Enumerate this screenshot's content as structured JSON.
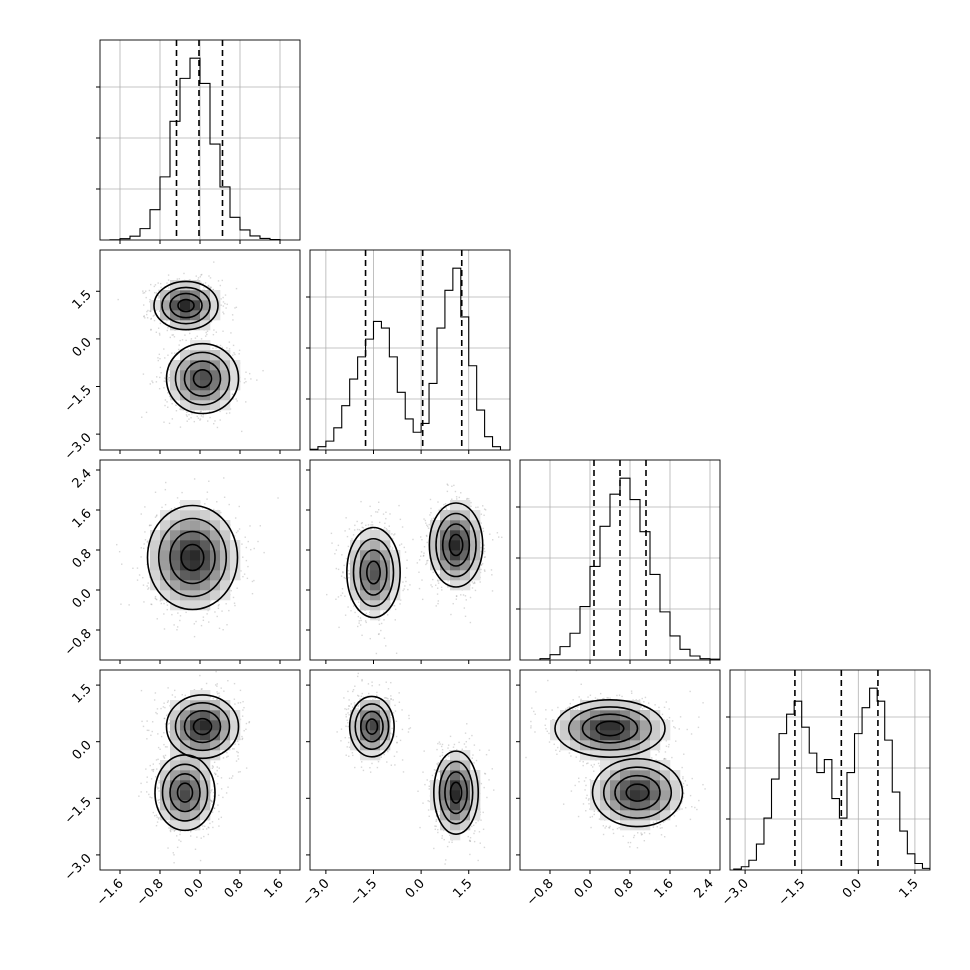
{
  "chart_data": {
    "type": "corner",
    "parameters": 4,
    "grid": true,
    "colors": {
      "line": "#000000",
      "grid": "#b0b0b0",
      "scatter": "#8c8c8c"
    },
    "axes": [
      {
        "lim": [
          -2.0,
          2.0
        ],
        "ticks": [
          -1.6,
          -0.8,
          0.0,
          0.8,
          1.6
        ],
        "tick_labels": [
          "−1.6",
          "−0.8",
          "0.0",
          "0.8",
          "1.6"
        ]
      },
      {
        "lim": [
          -3.5,
          2.8
        ],
        "ticks": [
          -3.0,
          -1.5,
          0.0,
          1.5
        ],
        "tick_labels": [
          "−3.0",
          "−1.5",
          "0.0",
          "1.5"
        ]
      },
      {
        "lim": [
          -1.4,
          2.6
        ],
        "ticks": [
          -0.8,
          0.0,
          0.8,
          1.6,
          2.4
        ],
        "tick_labels": [
          "−0.8",
          "0.0",
          "0.8",
          "1.6",
          "2.4"
        ]
      },
      {
        "lim": [
          -3.4,
          1.9
        ],
        "ticks": [
          -3.0,
          -1.5,
          0.0,
          1.5
        ],
        "tick_labels": [
          "−3.0",
          "−1.5",
          "0.0",
          "1.5"
        ]
      }
    ],
    "diagonal": [
      {
        "param": 0,
        "bin_edges": [
          -1.8,
          -1.6,
          -1.4,
          -1.2,
          -1.0,
          -0.8,
          -0.6,
          -0.4,
          -0.2,
          0.0,
          0.2,
          0.4,
          0.6,
          0.8,
          1.0,
          1.2,
          1.4,
          1.6
        ],
        "counts": [
          0.1,
          0.5,
          1.5,
          4.5,
          12,
          25,
          47,
          64,
          72,
          62,
          38,
          21,
          9,
          4,
          1.6,
          0.6,
          0.2
        ],
        "quantiles": [
          -0.47,
          -0.02,
          0.45
        ]
      },
      {
        "param": 1,
        "bin_edges": [
          -3.5,
          -3.25,
          -3.0,
          -2.75,
          -2.5,
          -2.25,
          -2.0,
          -1.75,
          -1.5,
          -1.25,
          -1.0,
          -0.75,
          -0.5,
          -0.25,
          0.0,
          0.25,
          0.5,
          0.75,
          1.0,
          1.25,
          1.5,
          1.75,
          2.0,
          2.25,
          2.5
        ],
        "counts": [
          0.3,
          1.5,
          4,
          10,
          20,
          32,
          42,
          50,
          58,
          55,
          42,
          26,
          14,
          8,
          12,
          30,
          55,
          72,
          82,
          60,
          38,
          18,
          6,
          1.5
        ],
        "quantiles": [
          -1.75,
          0.05,
          1.28
        ]
      },
      {
        "param": 2,
        "bin_edges": [
          -1.0,
          -0.8,
          -0.6,
          -0.4,
          -0.2,
          0.0,
          0.2,
          0.4,
          0.6,
          0.8,
          1.0,
          1.2,
          1.4,
          1.6,
          1.8,
          2.0,
          2.2,
          2.4,
          2.6
        ],
        "counts": [
          0.5,
          2,
          5,
          10,
          20,
          35,
          50,
          62,
          68,
          60,
          48,
          32,
          18,
          9,
          4,
          1.5,
          0.5,
          0.3
        ],
        "quantiles": [
          0.08,
          0.6,
          1.12
        ]
      },
      {
        "param": 3,
        "bin_edges": [
          -3.3,
          -3.1,
          -2.9,
          -2.7,
          -2.5,
          -2.3,
          -2.1,
          -1.9,
          -1.7,
          -1.5,
          -1.3,
          -1.1,
          -0.9,
          -0.7,
          -0.5,
          -0.3,
          -0.1,
          0.1,
          0.3,
          0.5,
          0.7,
          0.9,
          1.1,
          1.3,
          1.5,
          1.7,
          1.9
        ],
        "counts": [
          0.3,
          1,
          3,
          8,
          16,
          28,
          42,
          48,
          52,
          44,
          36,
          30,
          34,
          22,
          16,
          30,
          42,
          50,
          56,
          52,
          40,
          24,
          12,
          5,
          2,
          0.5
        ],
        "quantiles": [
          -1.68,
          -0.45,
          0.52
        ]
      }
    ],
    "joint": [
      {
        "x": 0,
        "y": 1,
        "modes": [
          {
            "cx": -0.28,
            "cy": 1.05,
            "sx": 0.32,
            "sy": 0.38,
            "w": 1.0
          },
          {
            "cx": 0.05,
            "cy": -1.25,
            "sx": 0.36,
            "sy": 0.55,
            "w": 0.85
          }
        ]
      },
      {
        "x": 0,
        "y": 2,
        "modes": [
          {
            "cx": -0.15,
            "cy": 0.65,
            "sx": 0.45,
            "sy": 0.52,
            "w": 1.0
          }
        ]
      },
      {
        "x": 1,
        "y": 2,
        "modes": [
          {
            "cx": -1.5,
            "cy": 0.35,
            "sx": 0.42,
            "sy": 0.45,
            "w": 0.8
          },
          {
            "cx": 1.1,
            "cy": 0.9,
            "sx": 0.42,
            "sy": 0.42,
            "w": 1.0
          }
        ]
      },
      {
        "x": 0,
        "y": 3,
        "modes": [
          {
            "cx": 0.05,
            "cy": 0.4,
            "sx": 0.36,
            "sy": 0.42,
            "w": 1.0
          },
          {
            "cx": -0.3,
            "cy": -1.35,
            "sx": 0.3,
            "sy": 0.5,
            "w": 0.85
          }
        ]
      },
      {
        "x": 1,
        "y": 3,
        "modes": [
          {
            "cx": -1.55,
            "cy": 0.4,
            "sx": 0.35,
            "sy": 0.4,
            "w": 0.9
          },
          {
            "cx": 1.1,
            "cy": -1.35,
            "sx": 0.35,
            "sy": 0.55,
            "w": 1.0
          }
        ]
      },
      {
        "x": 2,
        "y": 3,
        "modes": [
          {
            "cx": 0.4,
            "cy": 0.35,
            "sx": 0.55,
            "sy": 0.38,
            "w": 1.0
          },
          {
            "cx": 0.95,
            "cy": -1.35,
            "sx": 0.45,
            "sy": 0.45,
            "w": 0.95
          }
        ]
      }
    ]
  }
}
